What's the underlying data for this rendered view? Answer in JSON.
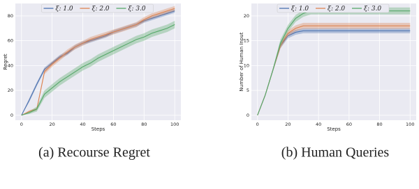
{
  "chart_data": [
    {
      "type": "line",
      "caption": "(a) Recourse Regret",
      "xlabel": "Steps",
      "ylabel": "Regret",
      "xlim": [
        -4,
        104
      ],
      "ylim": [
        -4,
        90
      ],
      "xticks": [
        0,
        20,
        40,
        60,
        80,
        100
      ],
      "yticks": [
        0,
        20,
        40,
        60,
        80
      ],
      "grid": true,
      "x": [
        0,
        5,
        10,
        15,
        20,
        25,
        30,
        35,
        40,
        45,
        50,
        55,
        60,
        65,
        70,
        75,
        80,
        85,
        90,
        95,
        100
      ],
      "series": [
        {
          "name": "ξ: 1.0",
          "color": "#4c72b0",
          "values": [
            0,
            12,
            25,
            37,
            42,
            47,
            50,
            55,
            58,
            60,
            62,
            64,
            67,
            69,
            71,
            73,
            76,
            78,
            80,
            82,
            84
          ],
          "errors": [
            0,
            1.5,
            1.5,
            1.5,
            1.5,
            1.5,
            1.5,
            1.5,
            1.5,
            1.5,
            1.5,
            1.5,
            1.5,
            1.5,
            1.5,
            1.5,
            1.5,
            1.5,
            1.5,
            1.5,
            1.5
          ]
        },
        {
          "name": "ξ: 2.0",
          "color": "#dd8452",
          "values": [
            0,
            3,
            5,
            35,
            41,
            46,
            51,
            55,
            58,
            61,
            63,
            65,
            67,
            69,
            71,
            73,
            77,
            80,
            82,
            84,
            86
          ],
          "errors": [
            0,
            1,
            1,
            2,
            2,
            2,
            2,
            2,
            2,
            2,
            2,
            2,
            2,
            2,
            2,
            2,
            2,
            2,
            2,
            2,
            2
          ]
        },
        {
          "name": "ξ: 3.0",
          "color": "#55a868",
          "values": [
            0,
            2,
            5,
            17,
            22,
            27,
            31,
            35,
            39,
            42,
            46,
            49,
            52,
            55,
            58,
            61,
            63,
            66,
            68,
            70,
            73
          ],
          "errors": [
            0,
            1,
            2,
            3,
            3,
            3,
            3,
            3,
            3,
            3,
            3,
            3,
            3,
            3,
            3,
            3,
            3,
            3,
            3,
            3,
            3
          ]
        }
      ]
    },
    {
      "type": "line",
      "caption": "(b) Human Queries",
      "xlabel": "Steps",
      "ylabel": "Number of Human Input",
      "xlim": [
        -4,
        104
      ],
      "ylim": [
        -1,
        22.5
      ],
      "xticks": [
        0,
        20,
        40,
        60,
        80,
        100
      ],
      "yticks": [
        0,
        5,
        10,
        15,
        20
      ],
      "grid": true,
      "x": [
        0,
        5,
        10,
        15,
        20,
        25,
        30,
        35,
        40,
        45,
        50,
        55,
        60,
        65,
        70,
        75,
        80,
        85,
        90,
        95,
        100
      ],
      "series": [
        {
          "name": "ξ: 1.0",
          "color": "#4c72b0",
          "values": [
            0,
            4,
            9,
            14,
            16,
            16.7,
            17,
            17,
            17,
            17,
            17,
            17,
            17,
            17,
            17,
            17,
            17,
            17,
            17,
            17,
            17
          ],
          "errors": [
            0,
            0.2,
            0.3,
            0.5,
            0.5,
            0.5,
            0.5,
            0.5,
            0.5,
            0.5,
            0.5,
            0.5,
            0.5,
            0.5,
            0.5,
            0.5,
            0.5,
            0.5,
            0.5,
            0.5,
            0.5
          ]
        },
        {
          "name": "ξ: 2.0",
          "color": "#dd8452",
          "values": [
            0,
            4,
            9,
            14,
            16.5,
            17.5,
            18,
            18,
            18,
            18,
            18,
            18,
            18,
            18,
            18,
            18,
            18,
            18,
            18,
            18,
            18
          ],
          "errors": [
            0,
            0.2,
            0.3,
            0.6,
            0.6,
            0.6,
            0.6,
            0.6,
            0.6,
            0.6,
            0.6,
            0.6,
            0.6,
            0.6,
            0.6,
            0.6,
            0.6,
            0.6,
            0.6,
            0.6,
            0.6
          ]
        },
        {
          "name": "ξ: 3.0",
          "color": "#55a868",
          "values": [
            0,
            4,
            9,
            14.5,
            17.5,
            19.5,
            20.5,
            21,
            21,
            21,
            21,
            21,
            21,
            21,
            21,
            21,
            21,
            21,
            21,
            21,
            21
          ],
          "errors": [
            0,
            0.2,
            0.3,
            0.7,
            0.7,
            0.7,
            0.7,
            0.7,
            0.7,
            0.7,
            0.7,
            0.7,
            0.7,
            0.7,
            0.7,
            0.7,
            0.7,
            0.7,
            0.7,
            0.7,
            0.7
          ]
        }
      ]
    }
  ]
}
